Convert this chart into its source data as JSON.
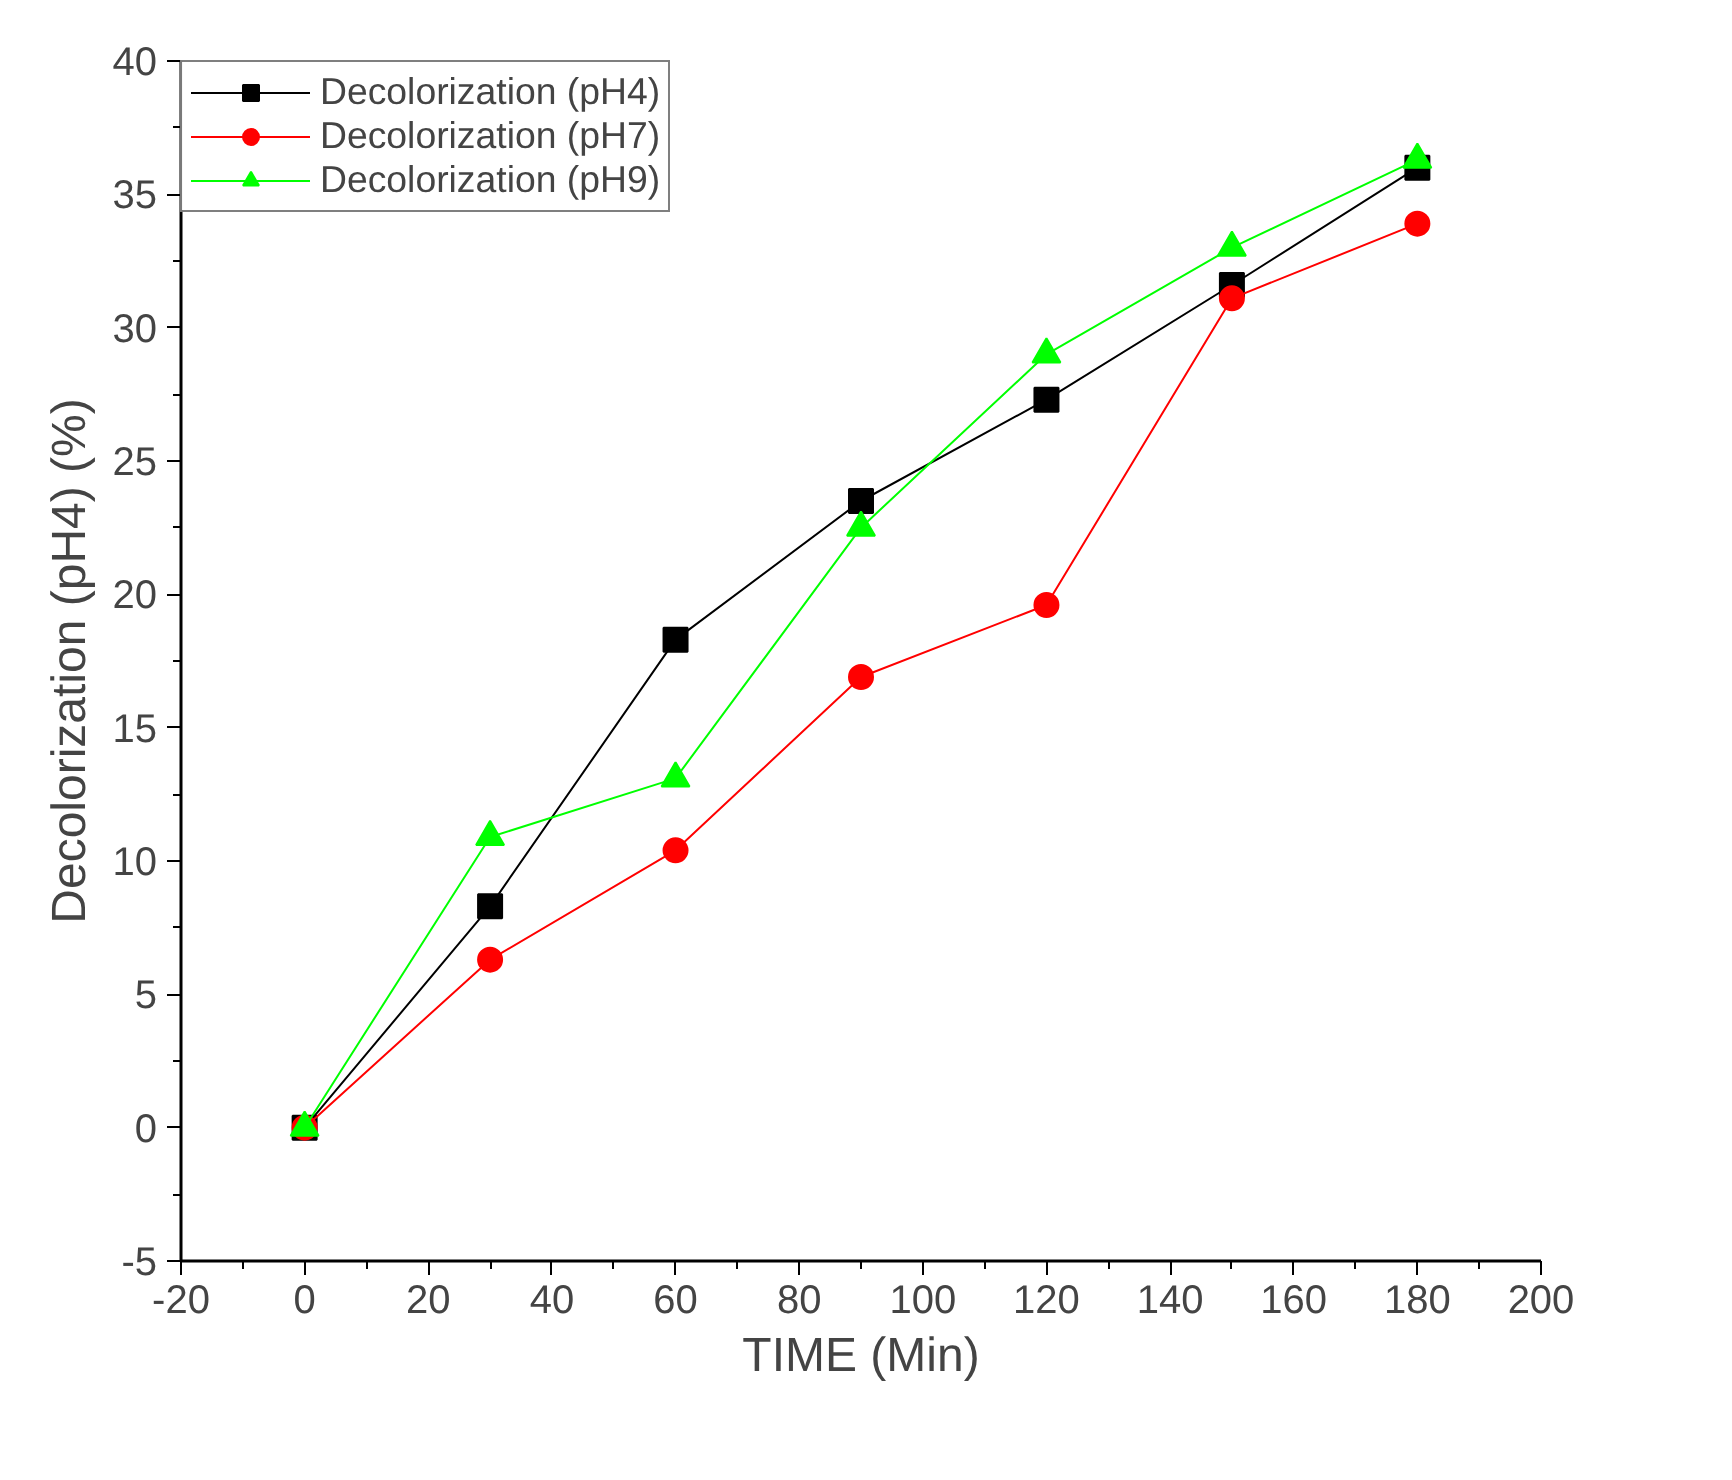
{
  "chart_data": {
    "type": "line",
    "xlabel": "TIME (Min)",
    "ylabel": "Decolorization (pH4) (%)",
    "x": [
      0,
      30,
      60,
      90,
      120,
      150,
      180
    ],
    "series": [
      {
        "name": "Decolorization (pH4)",
        "color": "#000000",
        "marker": "square",
        "values": [
          0,
          8.3,
          18.3,
          23.5,
          27.3,
          31.6,
          36.0
        ]
      },
      {
        "name": "Decolorization (pH7)",
        "color": "#ff0000",
        "marker": "circle",
        "values": [
          0,
          6.3,
          10.4,
          16.9,
          19.6,
          31.1,
          33.9
        ]
      },
      {
        "name": "Decolorization (pH9)",
        "color": "#00ff00",
        "marker": "triangle",
        "values": [
          0,
          10.9,
          13.1,
          22.5,
          29.0,
          33.0,
          36.3
        ]
      }
    ],
    "xlim": [
      -20,
      200
    ],
    "xticks": [
      -20,
      0,
      20,
      40,
      60,
      80,
      100,
      120,
      140,
      160,
      180,
      200
    ],
    "ylim": [
      -5,
      40
    ],
    "yticks": [
      -5,
      0,
      5,
      10,
      15,
      20,
      25,
      30,
      35,
      40
    ],
    "grid": false,
    "legend": "top left",
    "line_style": "solid"
  }
}
